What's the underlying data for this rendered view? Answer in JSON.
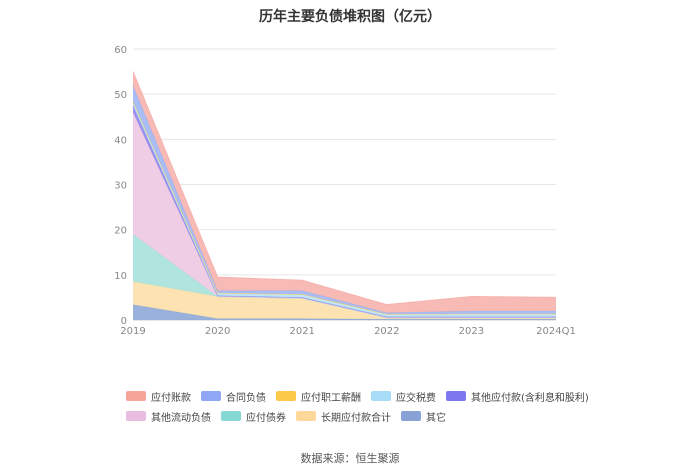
{
  "chart_data": {
    "type": "area",
    "stacked": true,
    "title": "历年主要负债堆积图（亿元）",
    "x": [
      "2019",
      "2020",
      "2021",
      "2022",
      "2023",
      "2024Q1"
    ],
    "yticks": [
      "0",
      "10",
      "20",
      "30",
      "40",
      "50",
      "60"
    ],
    "ylim": [
      0,
      60
    ],
    "grid": true,
    "legend_position": "bottom",
    "series": [
      {
        "name": "其它",
        "color": "#8fa8d8",
        "values": [
          3.4,
          0.3,
          0.3,
          0.2,
          0.2,
          0.2
        ]
      },
      {
        "name": "长期应付款合计",
        "color": "#fde0a8",
        "values": [
          5.1,
          4.9,
          4.5,
          0.3,
          0.3,
          0.3
        ]
      },
      {
        "name": "应付债券",
        "color": "#a6e1dc",
        "values": [
          10.5,
          0.0,
          0.0,
          0.0,
          0.0,
          0.0
        ]
      },
      {
        "name": "其他流动负债",
        "color": "#ecc8e2",
        "values": [
          27.0,
          0.1,
          0.1,
          0.1,
          0.1,
          0.1
        ]
      },
      {
        "name": "其他应付款(含利息和股利)",
        "color": "#8e86ec",
        "values": [
          1.5,
          0.1,
          0.1,
          0.1,
          0.1,
          0.1
        ]
      },
      {
        "name": "应交税费",
        "color": "#b8e4f6",
        "values": [
          0.8,
          0.5,
          0.6,
          0.5,
          0.6,
          0.6
        ]
      },
      {
        "name": "应付职工薪酬",
        "color": "#fdd36a",
        "values": [
          0.1,
          0.1,
          0.1,
          0.1,
          0.1,
          0.1
        ]
      },
      {
        "name": "合同负债",
        "color": "#9fb5f4",
        "values": [
          3.5,
          0.5,
          0.8,
          0.3,
          0.6,
          0.6
        ]
      },
      {
        "name": "应付账款",
        "color": "#f6b3ad",
        "values": [
          3.1,
          3.0,
          2.3,
          1.8,
          3.2,
          3.0
        ]
      }
    ]
  },
  "legend": [
    {
      "label": "应付账款",
      "color": "#f6a39a"
    },
    {
      "label": "合同负债",
      "color": "#8ea6f4"
    },
    {
      "label": "应付职工薪酬",
      "color": "#fbc84a"
    },
    {
      "label": "应交税费",
      "color": "#a6dcf6"
    },
    {
      "label": "其他应付款(含利息和股利)",
      "color": "#7e76ec"
    },
    {
      "label": "其他流动负债",
      "color": "#e7bde0"
    },
    {
      "label": "应付债券",
      "color": "#86d8d2"
    },
    {
      "label": "长期应付款合计",
      "color": "#fdd89a"
    },
    {
      "label": "其它",
      "color": "#89a2d6"
    }
  ],
  "source": "数据来源：恒生聚源"
}
